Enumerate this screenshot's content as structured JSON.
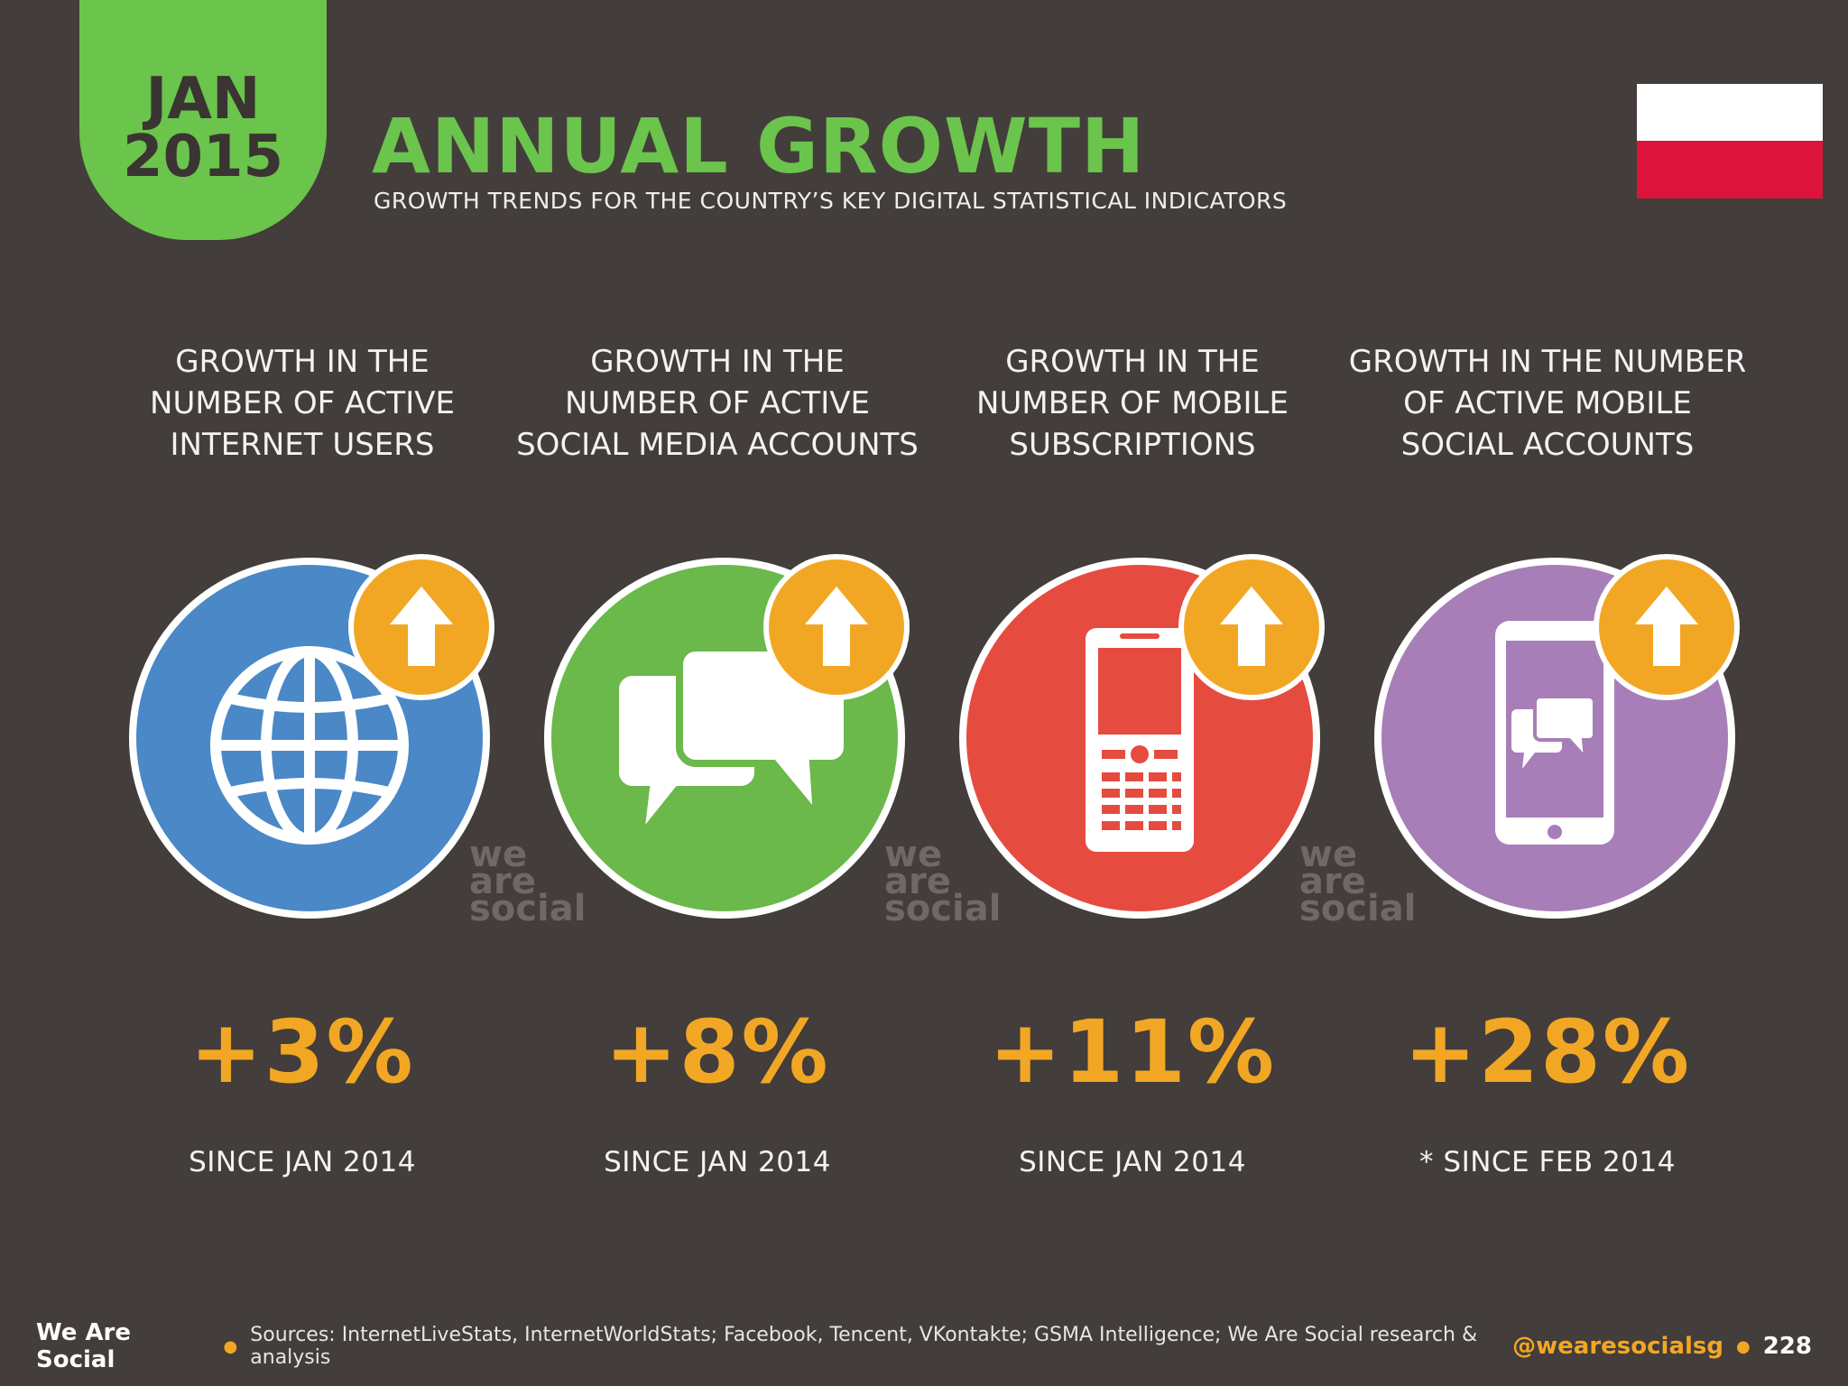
{
  "badge": {
    "month": "JAN",
    "year": "2015"
  },
  "header": {
    "title": "ANNUAL GROWTH",
    "subtitle": "GROWTH TRENDS FOR THE COUNTRY’S KEY DIGITAL STATISTICAL INDICATORS"
  },
  "flag": {
    "top_color": "#ffffff",
    "bottom_color": "#dc143c"
  },
  "indicators": [
    {
      "heading": "GROWTH IN THE\nNUMBER OF ACTIVE\nINTERNET USERS",
      "value": "+3%",
      "since": "SINCE JAN 2014",
      "color": "#4a88c7",
      "icon": "globe-icon"
    },
    {
      "heading": "GROWTH IN THE\nNUMBER OF ACTIVE\nSOCIAL MEDIA ACCOUNTS",
      "value": "+8%",
      "since": "SINCE JAN 2014",
      "color": "#6bb84b",
      "icon": "chat-bubbles-icon"
    },
    {
      "heading": "GROWTH IN THE\nNUMBER OF MOBILE\nSUBSCRIPTIONS",
      "value": "+11%",
      "since": "SINCE JAN 2014",
      "color": "#e64b3f",
      "icon": "mobile-phone-icon"
    },
    {
      "heading": "GROWTH IN THE NUMBER\nOF ACTIVE MOBILE\nSOCIAL ACCOUNTS",
      "value": "+28%",
      "since": "* SINCE FEB 2014",
      "color": "#a77eb7",
      "icon": "smartphone-chat-icon"
    }
  ],
  "watermark": {
    "line1": "we",
    "line2": "are",
    "line3": "social"
  },
  "footer": {
    "brand": "We Are Social",
    "sources": "Sources: InternetLiveStats, InternetWorldStats; Facebook, Tencent, VKontakte; GSMA Intelligence; We Are Social research & analysis",
    "handle": "@wearesocialsg",
    "page": "228"
  },
  "colors": {
    "background": "#433d3b",
    "accent_green": "#6bc44b",
    "accent_orange": "#f2a724"
  }
}
